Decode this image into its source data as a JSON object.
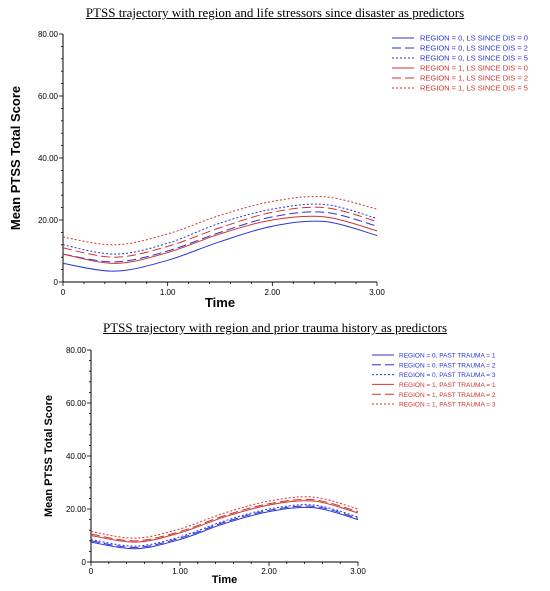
{
  "chart_data": [
    {
      "type": "line",
      "title": "PTSS trajectory with region and life stressors since disaster as predictors",
      "xlabel": "Time",
      "ylabel": "Mean PTSS Total Score",
      "xlim": [
        0,
        3
      ],
      "ylim": [
        0,
        80
      ],
      "xticks": [
        "0",
        "1.00",
        "2.00",
        "3.00"
      ],
      "yticks": [
        "0",
        "20.00",
        "40.00",
        "60.00",
        "80.00"
      ],
      "grid": false,
      "legend_position": "top-right",
      "x": [
        0,
        0.5,
        1.0,
        1.5,
        2.0,
        2.5,
        3.0
      ],
      "series": [
        {
          "name": "REGION = 0, LS SINCE DIS = 0",
          "color": "#2a35d6",
          "dash": "solid",
          "values": [
            6,
            3.5,
            7,
            13,
            18,
            19.5,
            15
          ]
        },
        {
          "name": "REGION = 0, LS SINCE DIS = 2",
          "color": "#2a35d6",
          "dash": "longdash",
          "values": [
            9,
            6.5,
            10,
            16,
            21,
            22.5,
            18
          ]
        },
        {
          "name": "REGION = 0, LS SINCE DIS = 5",
          "color": "#2a35d6",
          "dash": "dotted",
          "values": [
            12,
            9,
            12.5,
            19,
            23.5,
            25,
            20.5
          ]
        },
        {
          "name": "REGION = 1, LS SINCE DIS = 0",
          "color": "#d0342c",
          "dash": "solid",
          "values": [
            9,
            6,
            9.5,
            15.5,
            20,
            21,
            16.5
          ]
        },
        {
          "name": "REGION = 1, LS SINCE DIS = 2",
          "color": "#d0342c",
          "dash": "longdash",
          "values": [
            11,
            8,
            11.5,
            17.5,
            22.5,
            24,
            19.5
          ]
        },
        {
          "name": "REGION = 1, LS SINCE DIS = 5",
          "color": "#d0342c",
          "dash": "dotted",
          "values": [
            14.5,
            12,
            15.5,
            21.5,
            26,
            27.5,
            23.5
          ]
        }
      ]
    },
    {
      "type": "line",
      "title": "PTSS trajectory with region and prior trauma history as predictors",
      "xlabel": "Time",
      "ylabel": "Mean PTSS Total Score",
      "xlim": [
        0,
        3
      ],
      "ylim": [
        0,
        80
      ],
      "xticks": [
        "0",
        "1.00",
        "2.00",
        "3.00"
      ],
      "yticks": [
        "0",
        "20.00",
        "40.00",
        "60.00",
        "80.00"
      ],
      "grid": false,
      "legend_position": "top-right",
      "x": [
        0,
        0.5,
        1.0,
        1.5,
        2.0,
        2.5,
        3.0
      ],
      "series": [
        {
          "name": "REGION = 0, PAST TRAUMA = 1",
          "color": "#2a35d6",
          "dash": "solid",
          "values": [
            7.5,
            5,
            8.5,
            14.5,
            19,
            20.5,
            16
          ]
        },
        {
          "name": "REGION = 0, PAST TRAUMA = 2",
          "color": "#2a35d6",
          "dash": "longdash",
          "values": [
            8,
            5.5,
            9,
            15,
            19.5,
            21,
            16.5
          ]
        },
        {
          "name": "REGION = 0, PAST TRAUMA = 3",
          "color": "#2a35d6",
          "dash": "dotted",
          "values": [
            8.5,
            6,
            9.5,
            15.5,
            20,
            21.5,
            17
          ]
        },
        {
          "name": "REGION = 1, PAST TRAUMA = 1",
          "color": "#d0342c",
          "dash": "solid",
          "values": [
            10,
            7.5,
            11,
            17,
            21.5,
            23,
            18.5
          ]
        },
        {
          "name": "REGION = 1, PAST TRAUMA = 2",
          "color": "#d0342c",
          "dash": "longdash",
          "values": [
            10.5,
            8,
            11.5,
            17.5,
            22,
            23.5,
            19
          ]
        },
        {
          "name": "REGION = 1, PAST TRAUMA = 3",
          "color": "#d0342c",
          "dash": "dotted",
          "values": [
            11.5,
            9,
            12.5,
            18.5,
            23,
            24.5,
            20
          ]
        }
      ]
    }
  ]
}
